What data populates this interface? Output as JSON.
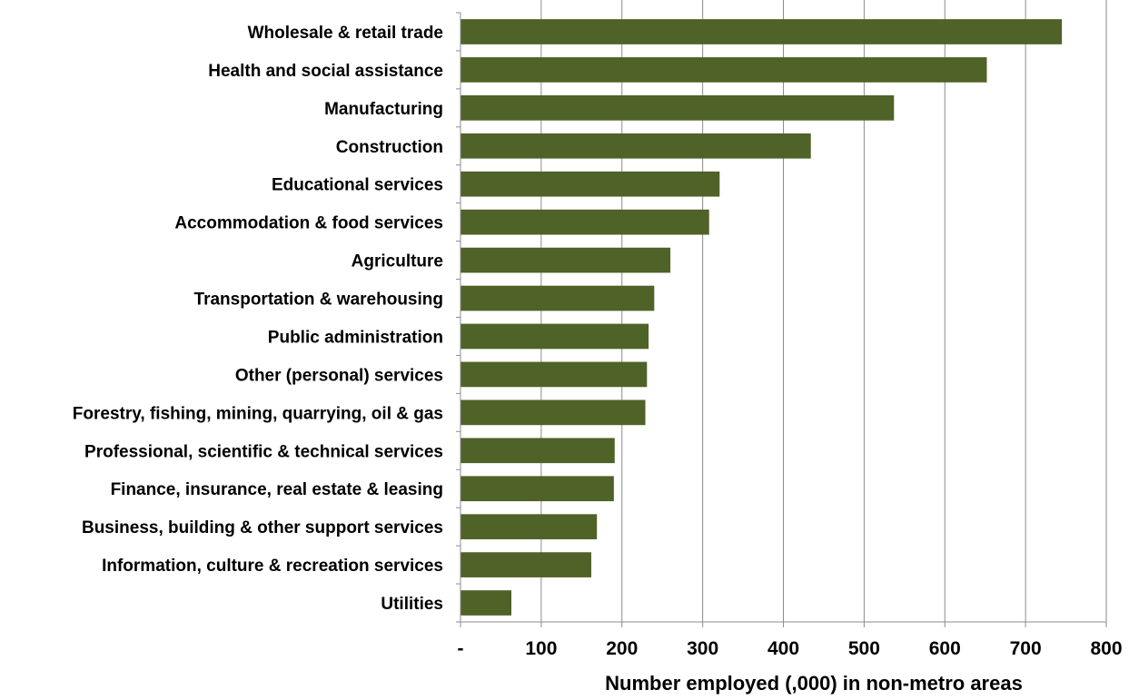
{
  "chart_data": {
    "type": "bar",
    "orientation": "horizontal",
    "title": "",
    "xlabel": "Number employed (,000) in non-metro areas",
    "ylabel": "",
    "xlim": [
      0,
      800
    ],
    "grid": "vertical",
    "legend": "none",
    "bar_color": "#4f6228",
    "x_ticks": [
      0,
      100,
      200,
      300,
      400,
      500,
      600,
      700,
      800
    ],
    "x_tick_labels": [
      "-",
      "100",
      "200",
      "300",
      "400",
      "500",
      "600",
      "700",
      "800"
    ],
    "categories": [
      "Wholesale & retail trade",
      "Health and social assistance",
      "Manufacturing",
      "Construction",
      "Educational services",
      "Accommodation & food services",
      "Agriculture",
      "Transportation & warehousing",
      "Public administration",
      "Other (personal) services",
      "Forestry, fishing, mining, quarrying, oil & gas",
      "Professional, scientific & technical services",
      "Finance, insurance, real estate & leasing",
      "Business, building & other support services",
      "Information, culture & recreation services",
      "Utilities"
    ],
    "values": [
      745,
      652,
      537,
      434,
      321,
      308,
      260,
      240,
      233,
      231,
      229,
      191,
      190,
      169,
      162,
      63
    ]
  }
}
